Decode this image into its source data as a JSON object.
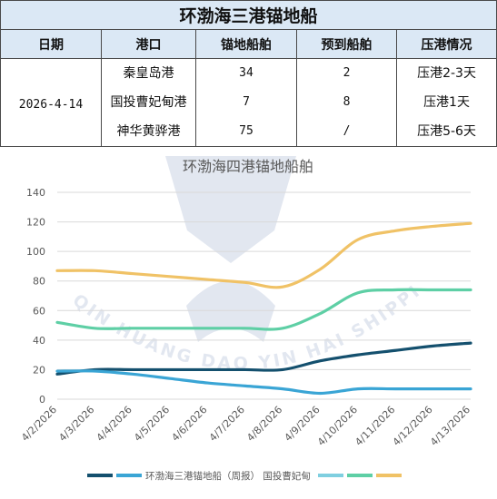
{
  "table": {
    "title": "环渤海三港锚地船",
    "headers": [
      "日期",
      "港口",
      "锚地船舶",
      "预到船舶",
      "压港情况"
    ],
    "date": "2026-4-14",
    "rows": [
      {
        "port": "秦皇岛港",
        "anchored": "34",
        "expected": "2",
        "status": "压港2-3天"
      },
      {
        "port": "国投曹妃甸港",
        "anchored": "7",
        "expected": "8",
        "status": "压港1天"
      },
      {
        "port": "神华黄骅港",
        "anchored": "75",
        "expected": "/",
        "status": "压港5-6天"
      }
    ]
  },
  "watermark": {
    "text": "QIN HUANG DAO YIN HAI SHIPPING"
  },
  "chart_data": {
    "type": "line",
    "title": "环渤海四港锚地船舶",
    "xlabel": "",
    "ylabel": "",
    "ylim": [
      0,
      140
    ],
    "yticks": [
      0,
      20,
      40,
      60,
      80,
      100,
      120,
      140
    ],
    "grid": true,
    "legend_position": "bottom",
    "x": [
      "4/2/2026",
      "4/3/2026",
      "4/4/2026",
      "4/5/2026",
      "4/6/2026",
      "4/7/2026",
      "4/8/2026",
      "4/9/2026",
      "4/10/2026",
      "4/11/2026",
      "4/12/2026",
      "4/13/2026"
    ],
    "legend_text": "环渤海三港锚地船（周报） 国投曹妃甸",
    "series": [
      {
        "color": "#14506e",
        "values": [
          17,
          20,
          20,
          20,
          20,
          20,
          20,
          26,
          30,
          33,
          36,
          38
        ]
      },
      {
        "color": "#3aa5d5",
        "values": [
          19,
          19,
          17,
          14,
          11,
          9,
          7,
          4,
          7,
          7,
          7,
          7
        ]
      },
      {
        "color": "#7fcfe0",
        "values": [
          null,
          null,
          null,
          null,
          null,
          null,
          null,
          null,
          null,
          null,
          null,
          null
        ]
      },
      {
        "color": "#5ecfa5",
        "values": [
          52,
          48,
          48,
          48,
          48,
          48,
          48,
          58,
          72,
          74,
          74,
          74
        ]
      },
      {
        "color": "#f0c266",
        "values": [
          87,
          87,
          85,
          83,
          81,
          79,
          76,
          88,
          108,
          114,
          117,
          119
        ]
      }
    ]
  }
}
